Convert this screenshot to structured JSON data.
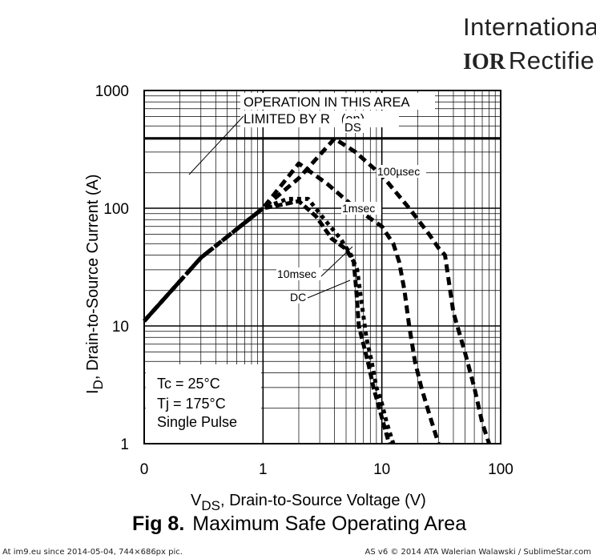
{
  "brand": {
    "line1": "Internationa",
    "logo": "IOR",
    "line2": "Rectifie"
  },
  "figure": {
    "number": "Fig 8.",
    "title": "Maximum Safe Operating Area"
  },
  "footer": {
    "left": "At im9.eu since 2014-05-04, 744×686px pic.",
    "right": "AS v6 © 2014 ATA Walerian Walawski / SublimeStar.com"
  },
  "chart_data": {
    "type": "line",
    "title": "",
    "xlabel": "V_DS, Drain-to-Source Voltage (V)",
    "xlabel_main": "V",
    "xlabel_sub": "DS",
    "xlabel_rest": ", Drain-to-Source Voltage (V)",
    "ylabel": "I_D, Drain-to-Source Current (A)",
    "ylabel_main": "I",
    "ylabel_sub": "D",
    "ylabel_rest": ", Drain-to-Source Current (A)",
    "xscale": "log",
    "yscale": "log",
    "xlim": [
      0.1,
      100
    ],
    "ylim": [
      1,
      1000
    ],
    "x_tick_labels": [
      "0",
      "1",
      "10",
      "100"
    ],
    "y_tick_labels": [
      "1",
      "10",
      "100",
      "1000"
    ],
    "grid": true,
    "annotations": {
      "rds_line1": "OPERATION IN THIS AREA",
      "rds_line2": "LIMITED BY R",
      "rds_sub": "DS",
      "rds_suffix": "(on)",
      "conditions": [
        "Tc = 25°C",
        "Tj = 175°C",
        "Single Pulse"
      ]
    },
    "limit_current": 390,
    "series": [
      {
        "name": "100µsec",
        "x": [
          0.1,
          0.3,
          1,
          2,
          4,
          6,
          10,
          17,
          25,
          30,
          34,
          40,
          50,
          60,
          70,
          80
        ],
        "y": [
          11,
          38,
          100,
          180,
          390,
          300,
          190,
          100,
          60,
          46,
          40,
          13,
          6,
          3,
          1.5,
          1
        ]
      },
      {
        "name": "1msec",
        "x": [
          0.1,
          0.3,
          1,
          2,
          3.5,
          6,
          10,
          12.5,
          14,
          15.5,
          17,
          19,
          21.5,
          25,
          30
        ],
        "y": [
          11,
          38,
          100,
          240,
          160,
          100,
          70,
          50,
          35,
          20,
          10,
          5,
          3,
          1.8,
          1
        ]
      },
      {
        "name": "10msec",
        "x": [
          0.1,
          0.3,
          1,
          1.6,
          2.4,
          3.3,
          4.5,
          5.5,
          6.2,
          6.8,
          7.4,
          8.2,
          9,
          10,
          11,
          12.5
        ],
        "y": [
          11,
          38,
          100,
          120,
          120,
          80,
          55,
          40,
          30,
          15,
          8,
          5,
          3,
          2.2,
          1.5,
          1
        ]
      },
      {
        "name": "DC",
        "x": [
          0.1,
          0.3,
          1,
          1.3,
          2.0,
          2.8,
          3.8,
          5.0,
          5.8,
          6.1,
          6.4,
          7.0,
          7.8,
          8.5,
          9.5,
          10.5,
          11.5
        ],
        "y": [
          11,
          38,
          100,
          105,
          115,
          85,
          55,
          45,
          35,
          20,
          10,
          7,
          4.5,
          3,
          2,
          1.4,
          1
        ]
      }
    ],
    "series_labels": [
      "100µsec",
      "1msec",
      "10msec",
      "DC"
    ]
  }
}
